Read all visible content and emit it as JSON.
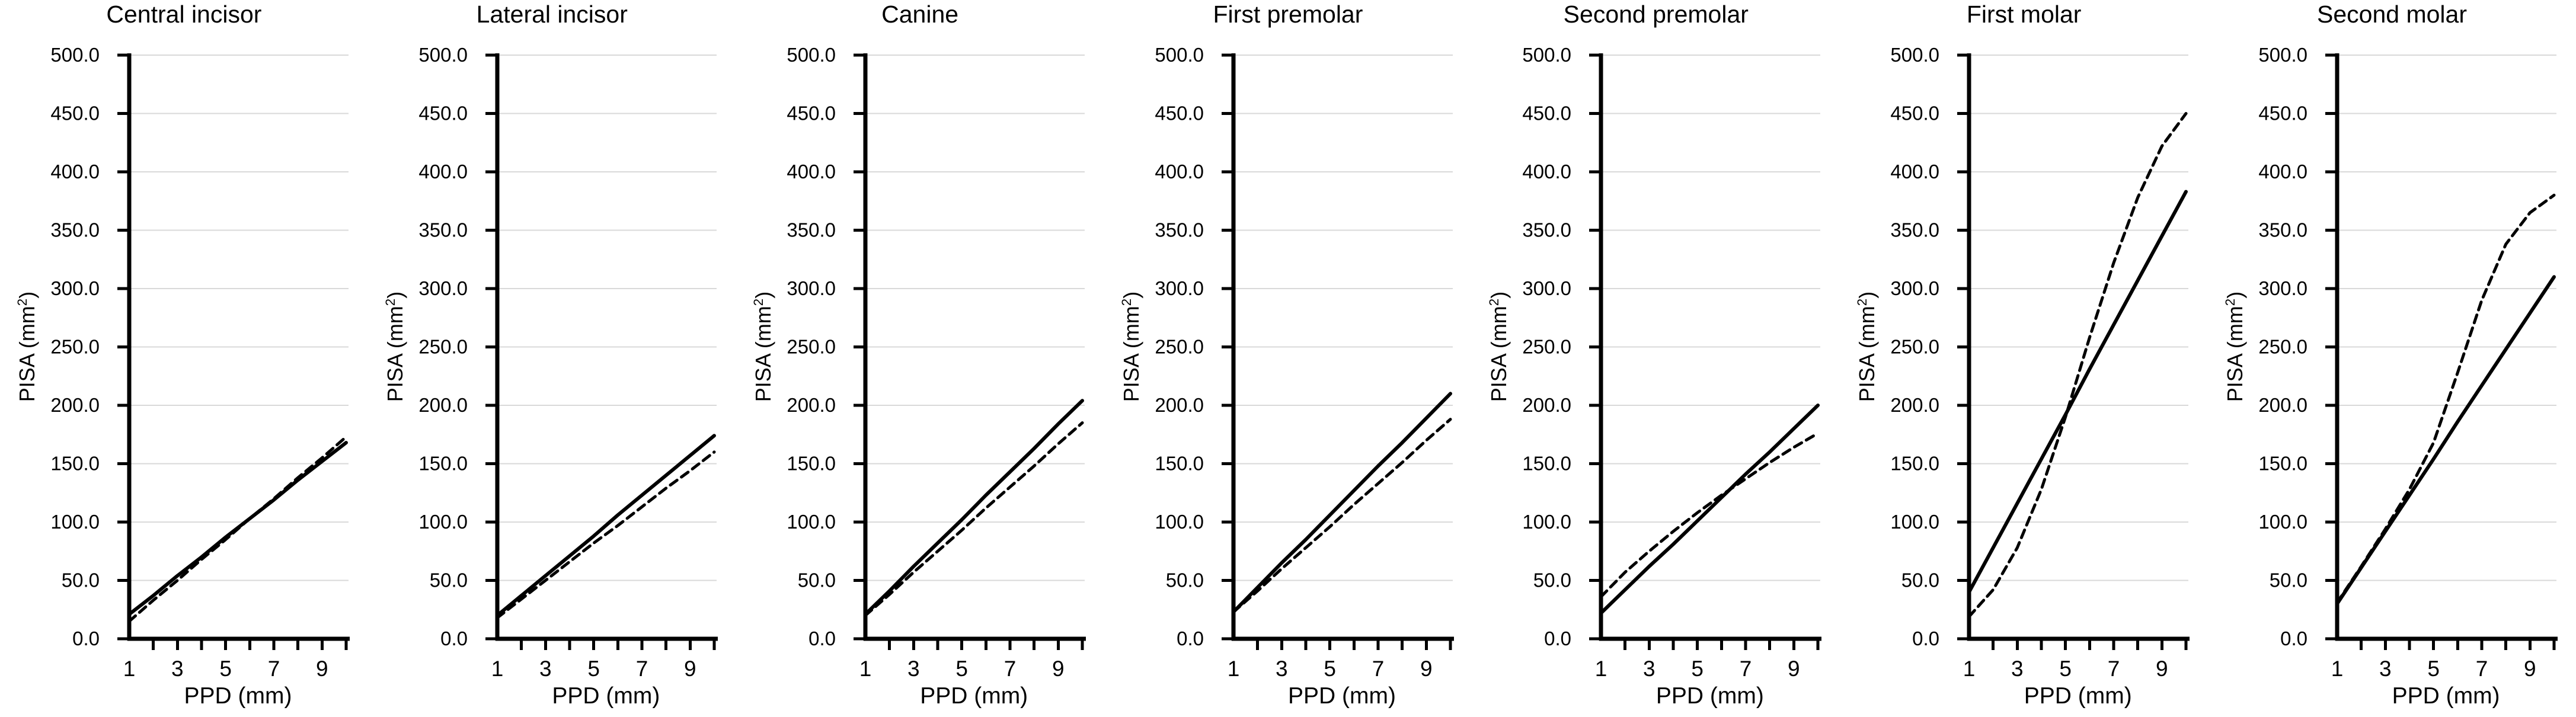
{
  "figure": {
    "background": "#ffffff",
    "text_color": "#000000",
    "line_color": "#000000",
    "grid_color": "#d9d9d9"
  },
  "axis": {
    "ylabel_prefix": "PISA (mm",
    "ylabel_sup": "2",
    "ylabel_suffix": ")",
    "xlabel": "PPD (mm)",
    "ytick_labels": [
      "0.0",
      "50.0",
      "100.0",
      "150.0",
      "200.0",
      "250.0",
      "300.0",
      "350.0",
      "400.0",
      "450.0",
      "500.0"
    ],
    "xtick_labels": [
      "1",
      "3",
      "5",
      "7",
      "9"
    ]
  },
  "chart_data": [
    {
      "type": "line",
      "title": "Central incisor",
      "xlabel": "PPD (mm)",
      "ylabel": "PISA (mm2)",
      "xlim": [
        1,
        10
      ],
      "ylim": [
        0,
        500
      ],
      "ytick_interval": 50,
      "labeled_xticks": [
        1,
        3,
        5,
        7,
        9
      ],
      "grid": "horizontal",
      "legend": "none",
      "x": [
        1,
        2,
        3,
        4,
        5,
        6,
        7,
        8,
        9,
        10
      ],
      "series": [
        {
          "name": "solid",
          "line_style": "solid",
          "color": "#000000",
          "values": [
            21,
            37,
            54,
            70,
            87,
            103,
            119,
            136,
            152,
            168
          ]
        },
        {
          "name": "dashed",
          "line_style": "dashed",
          "color": "#000000",
          "values": [
            15,
            33,
            50,
            68,
            85,
            103,
            120,
            138,
            155,
            173
          ]
        }
      ]
    },
    {
      "type": "line",
      "title": "Lateral incisor",
      "xlabel": "PPD (mm)",
      "ylabel": "PISA (mm2)",
      "xlim": [
        1,
        10
      ],
      "ylim": [
        0,
        500
      ],
      "ytick_interval": 50,
      "labeled_xticks": [
        1,
        3,
        5,
        7,
        9
      ],
      "grid": "horizontal",
      "legend": "none",
      "x": [
        1,
        2,
        3,
        4,
        5,
        6,
        7,
        8,
        9,
        10
      ],
      "series": [
        {
          "name": "solid",
          "line_style": "solid",
          "color": "#000000",
          "values": [
            20,
            37,
            54,
            71,
            88,
            106,
            123,
            140,
            157,
            174
          ]
        },
        {
          "name": "dashed",
          "line_style": "dashed",
          "color": "#000000",
          "values": [
            18,
            34,
            50,
            66,
            82,
            97,
            113,
            129,
            144,
            160
          ]
        }
      ]
    },
    {
      "type": "line",
      "title": "Canine",
      "xlabel": "PPD (mm)",
      "ylabel": "PISA (mm2)",
      "xlim": [
        1,
        10
      ],
      "ylim": [
        0,
        500
      ],
      "ytick_interval": 50,
      "labeled_xticks": [
        1,
        3,
        5,
        7,
        9
      ],
      "grid": "horizontal",
      "legend": "none",
      "x": [
        1,
        2,
        3,
        4,
        5,
        6,
        7,
        8,
        9,
        10
      ],
      "series": [
        {
          "name": "solid",
          "line_style": "solid",
          "color": "#000000",
          "values": [
            21,
            41,
            62,
            82,
            102,
            123,
            143,
            163,
            184,
            204
          ]
        },
        {
          "name": "dashed",
          "line_style": "dashed",
          "color": "#000000",
          "values": [
            20,
            38,
            57,
            75,
            93,
            112,
            130,
            148,
            167,
            185
          ]
        }
      ]
    },
    {
      "type": "line",
      "title": "First premolar",
      "xlabel": "PPD (mm)",
      "ylabel": "PISA (mm2)",
      "xlim": [
        1,
        10
      ],
      "ylim": [
        0,
        500
      ],
      "ytick_interval": 50,
      "labeled_xticks": [
        1,
        3,
        5,
        7,
        9
      ],
      "grid": "horizontal",
      "legend": "none",
      "x": [
        1,
        2,
        3,
        4,
        5,
        6,
        7,
        8,
        9,
        10
      ],
      "series": [
        {
          "name": "solid",
          "line_style": "solid",
          "color": "#000000",
          "values": [
            23,
            44,
            65,
            85,
            106,
            127,
            148,
            168,
            189,
            210
          ]
        },
        {
          "name": "dashed",
          "line_style": "dashed",
          "color": "#000000",
          "values": [
            23,
            41,
            60,
            78,
            96,
            115,
            133,
            151,
            170,
            188
          ]
        }
      ]
    },
    {
      "type": "line",
      "title": "Second premolar",
      "xlabel": "PPD (mm)",
      "ylabel": "PISA (mm2)",
      "xlim": [
        1,
        10
      ],
      "ylim": [
        0,
        500
      ],
      "ytick_interval": 50,
      "labeled_xticks": [
        1,
        3,
        5,
        7,
        9
      ],
      "grid": "horizontal",
      "legend": "none",
      "x": [
        1,
        2,
        3,
        4,
        5,
        6,
        7,
        8,
        9,
        10
      ],
      "series": [
        {
          "name": "solid",
          "line_style": "solid",
          "color": "#000000",
          "values": [
            22,
            42,
            62,
            81,
            101,
            121,
            141,
            160,
            180,
            200
          ]
        },
        {
          "name": "dashed",
          "line_style": "dashed",
          "color": "#000000",
          "values": [
            36,
            57,
            75,
            92,
            108,
            123,
            137,
            151,
            164,
            176
          ]
        }
      ]
    },
    {
      "type": "line",
      "title": "First molar",
      "xlabel": "PPD (mm)",
      "ylabel": "PISA (mm2)",
      "xlim": [
        1,
        10
      ],
      "ylim": [
        0,
        500
      ],
      "ytick_interval": 50,
      "labeled_xticks": [
        1,
        3,
        5,
        7,
        9
      ],
      "grid": "horizontal",
      "legend": "none",
      "x": [
        1,
        2,
        3,
        4,
        5,
        6,
        7,
        8,
        9,
        10
      ],
      "series": [
        {
          "name": "solid",
          "line_style": "solid",
          "color": "#000000",
          "values": [
            40,
            78,
            116,
            154,
            192,
            231,
            269,
            307,
            345,
            383
          ]
        },
        {
          "name": "dashed",
          "line_style": "dashed",
          "color": "#000000",
          "values": [
            19,
            42,
            78,
            128,
            190,
            258,
            322,
            378,
            422,
            450
          ]
        }
      ]
    },
    {
      "type": "line",
      "title": "Second molar",
      "xlabel": "PPD (mm)",
      "ylabel": "PISA (mm2)",
      "xlim": [
        1,
        10
      ],
      "ylim": [
        0,
        500
      ],
      "ytick_interval": 50,
      "labeled_xticks": [
        1,
        3,
        5,
        7,
        9
      ],
      "grid": "horizontal",
      "legend": "none",
      "x": [
        1,
        2,
        3,
        4,
        5,
        6,
        7,
        8,
        9,
        10
      ],
      "series": [
        {
          "name": "solid",
          "line_style": "solid",
          "color": "#000000",
          "values": [
            30,
            61,
            92,
            123,
            154,
            186,
            217,
            248,
            279,
            310
          ]
        },
        {
          "name": "dashed",
          "line_style": "dashed",
          "color": "#000000",
          "values": [
            31,
            62,
            94,
            128,
            168,
            228,
            290,
            338,
            365,
            380
          ]
        }
      ]
    }
  ]
}
